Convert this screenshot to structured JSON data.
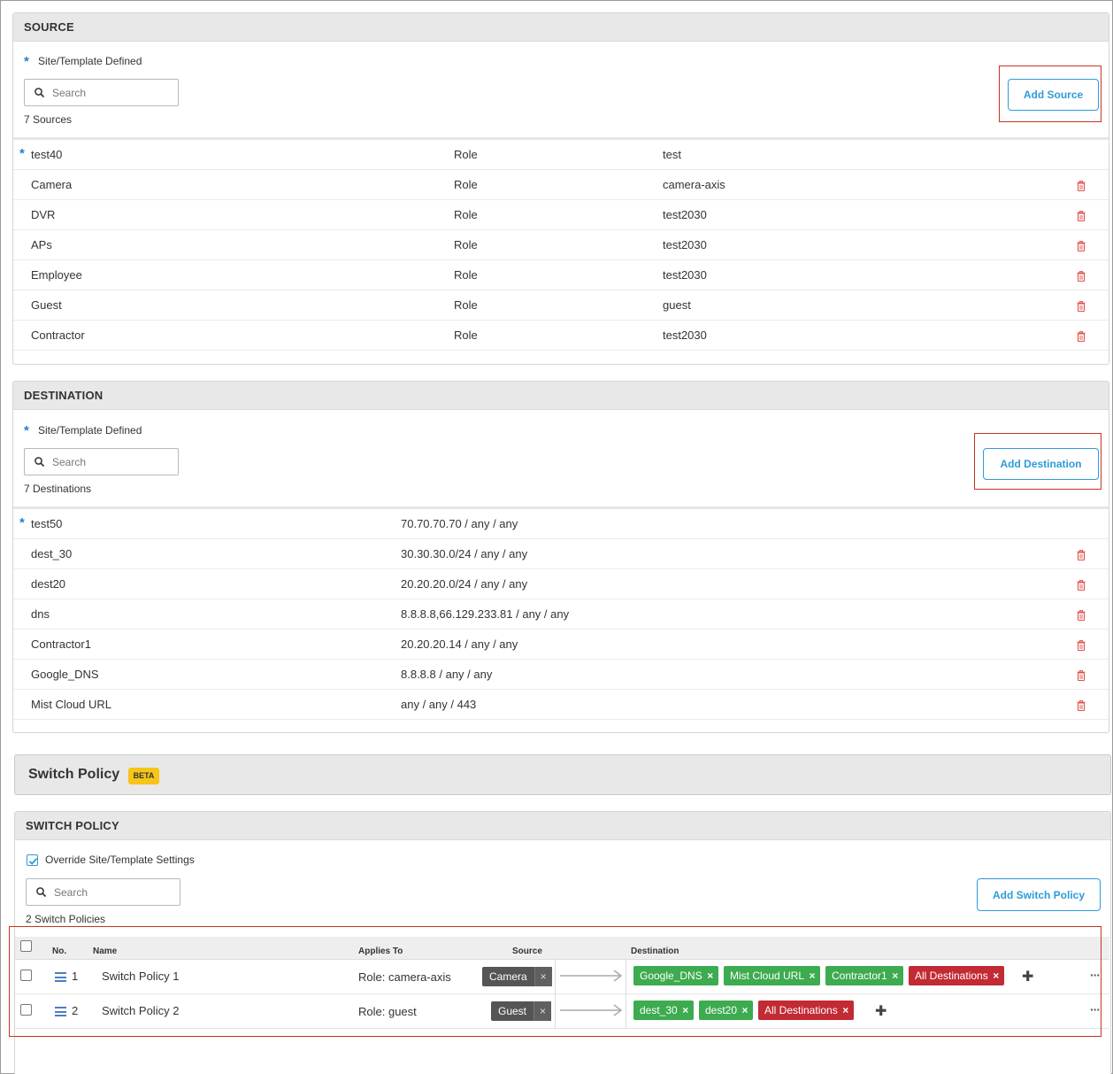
{
  "source": {
    "header": "SOURCE",
    "site_template_label": "Site/Template Defined",
    "search_placeholder": "Search",
    "count": "7 Sources",
    "add_button": "Add Source",
    "rows": [
      {
        "name": "test40",
        "type": "Role",
        "value": "test",
        "site_defined": true
      },
      {
        "name": "Camera",
        "type": "Role",
        "value": "camera-axis",
        "site_defined": false
      },
      {
        "name": "DVR",
        "type": "Role",
        "value": "test2030",
        "site_defined": false
      },
      {
        "name": "APs",
        "type": "Role",
        "value": "test2030",
        "site_defined": false
      },
      {
        "name": "Employee",
        "type": "Role",
        "value": "test2030",
        "site_defined": false
      },
      {
        "name": "Guest",
        "type": "Role",
        "value": "guest",
        "site_defined": false
      },
      {
        "name": "Contractor",
        "type": "Role",
        "value": "test2030",
        "site_defined": false
      }
    ]
  },
  "destination": {
    "header": "DESTINATION",
    "site_template_label": "Site/Template Defined",
    "search_placeholder": "Search",
    "count": "7 Destinations",
    "add_button": "Add Destination",
    "rows": [
      {
        "name": "test50",
        "value": "70.70.70.70 / any / any",
        "site_defined": true
      },
      {
        "name": "dest_30",
        "value": "30.30.30.0/24 / any / any",
        "site_defined": false
      },
      {
        "name": "dest20",
        "value": "20.20.20.0/24 / any / any",
        "site_defined": false
      },
      {
        "name": "dns",
        "value": "8.8.8.8,66.129.233.81 / any / any",
        "site_defined": false
      },
      {
        "name": "Contractor1",
        "value": "20.20.20.14 / any / any",
        "site_defined": false
      },
      {
        "name": "Google_DNS",
        "value": "8.8.8.8 / any / any",
        "site_defined": false
      },
      {
        "name": "Mist Cloud URL",
        "value": "any / any / 443",
        "site_defined": false
      }
    ]
  },
  "switch_policy_bar": {
    "title": "Switch Policy",
    "badge": "BETA"
  },
  "switch_policy": {
    "header": "SWITCH POLICY",
    "override_label": "Override Site/Template Settings",
    "override_checked": true,
    "search_placeholder": "Search",
    "count": "2 Switch Policies",
    "add_button": "Add Switch Policy",
    "columns": {
      "no": "No.",
      "name": "Name",
      "applies_to": "Applies To",
      "source": "Source",
      "destination": "Destination"
    },
    "rows": [
      {
        "no": "1",
        "name": "Switch Policy 1",
        "applies_to": "Role: camera-axis",
        "source": "Camera",
        "destinations": [
          {
            "label": "Google_DNS",
            "color": "#3dab4f"
          },
          {
            "label": "Mist Cloud URL",
            "color": "#3dab4f"
          },
          {
            "label": "Contractor1",
            "color": "#3dab4f"
          },
          {
            "label": "All Destinations",
            "color": "#c22a34"
          }
        ]
      },
      {
        "no": "2",
        "name": "Switch Policy 2",
        "applies_to": "Role: guest",
        "source": "Guest",
        "destinations": [
          {
            "label": "dest_30",
            "color": "#3dab4f"
          },
          {
            "label": "dest20",
            "color": "#3dab4f"
          },
          {
            "label": "All Destinations",
            "color": "#c22a34"
          }
        ]
      }
    ]
  },
  "colors": {
    "accent": "#2d9bd8",
    "star": "#2d7ec4",
    "highlight_box": "#c7341f",
    "allow_chip": "#3dab4f",
    "deny_chip": "#c22a34",
    "beta_badge": "#f5c518"
  }
}
